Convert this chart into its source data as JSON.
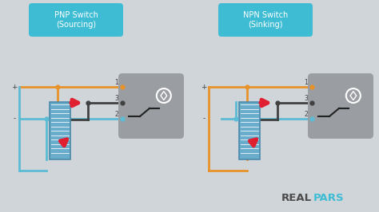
{
  "bg_color": "#d0d5da",
  "title_bg": "#3dbcd4",
  "title_color": "white",
  "orange_color": "#e8922a",
  "blue_color": "#5bbcd4",
  "dark_wire_color": "#404040",
  "gray_box_color": "#9a9ea2",
  "plc_color": "#6aaccc",
  "plc_stripe_color": "#ffffff",
  "plc_edge_color": "#4a8aaa",
  "red_arrow_color": "#e02030",
  "label_color": "#404040",
  "watermark_real": "#4a4a4a",
  "watermark_pars": "#3dbcd4",
  "pnp_title": "PNP Switch\n(Sourcing)",
  "npn_title": "NPN Switch\n(Sinking)",
  "pnp_ox": 10,
  "npn_ox": 247,
  "diagram_oy": 0
}
